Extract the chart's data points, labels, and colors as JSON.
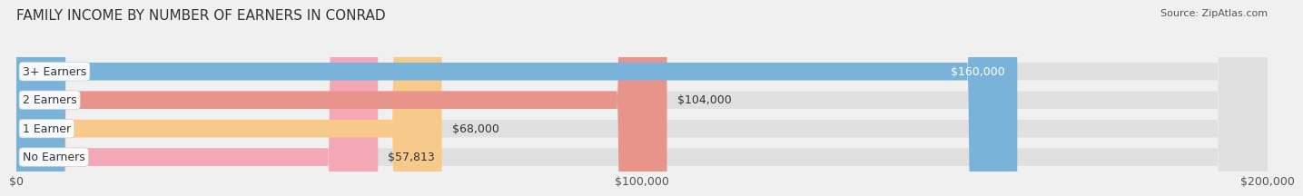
{
  "title": "FAMILY INCOME BY NUMBER OF EARNERS IN CONRAD",
  "source": "Source: ZipAtlas.com",
  "categories": [
    "No Earners",
    "1 Earner",
    "2 Earners",
    "3+ Earners"
  ],
  "values": [
    57813,
    68000,
    104000,
    160000
  ],
  "bar_colors": [
    "#f4a7b5",
    "#f7c98a",
    "#e8948a",
    "#7ab3d9"
  ],
  "label_colors": [
    "#555555",
    "#555555",
    "#555555",
    "#ffffff"
  ],
  "value_labels": [
    "$57,813",
    "$68,000",
    "$104,000",
    "$160,000"
  ],
  "xlim": [
    0,
    200000
  ],
  "xticks": [
    0,
    100000,
    200000
  ],
  "xtick_labels": [
    "$0",
    "$100,000",
    "$200,000"
  ],
  "background_color": "#f0f0f0",
  "bar_background": "#e8e8e8",
  "title_fontsize": 11,
  "label_fontsize": 9,
  "value_fontsize": 9,
  "source_fontsize": 8
}
